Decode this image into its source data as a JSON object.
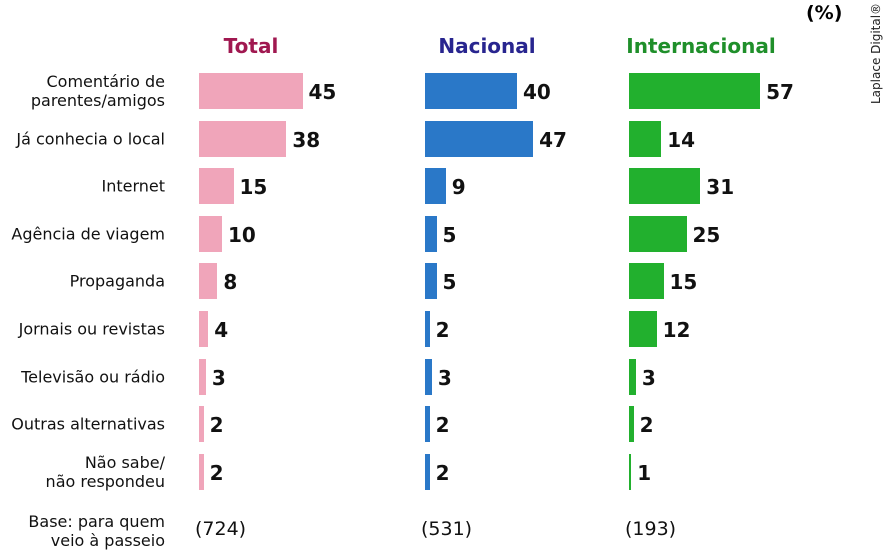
{
  "chart_data": {
    "type": "bar",
    "orientation": "horizontal",
    "unit": "(%)",
    "watermark": "Laplace Digital®",
    "categories": [
      "Comentário de\nparentes/amigos",
      "Já conhecia o local",
      "Internet",
      "Agência de viagem",
      "Propaganda",
      "Jornais ou revistas",
      "Televisão ou rádio",
      "Outras alternativas",
      "Não sabe/\nnão respondeu"
    ],
    "base_label": "Base: para quem\nveio à passeio",
    "series": [
      {
        "name": "Total",
        "color": "#f0a5ba",
        "title_color": "#a01850",
        "values": [
          45,
          38,
          15,
          10,
          8,
          4,
          3,
          2,
          2
        ],
        "base": "(724)"
      },
      {
        "name": "Nacional",
        "color": "#2a78c8",
        "title_color": "#28258f",
        "values": [
          40,
          47,
          9,
          5,
          5,
          2,
          3,
          2,
          2
        ],
        "base": "(531)"
      },
      {
        "name": "Internacional",
        "color": "#22b02e",
        "title_color": "#1f8f2a",
        "values": [
          57,
          14,
          31,
          25,
          15,
          12,
          3,
          2,
          1
        ],
        "base": "(193)"
      }
    ]
  }
}
